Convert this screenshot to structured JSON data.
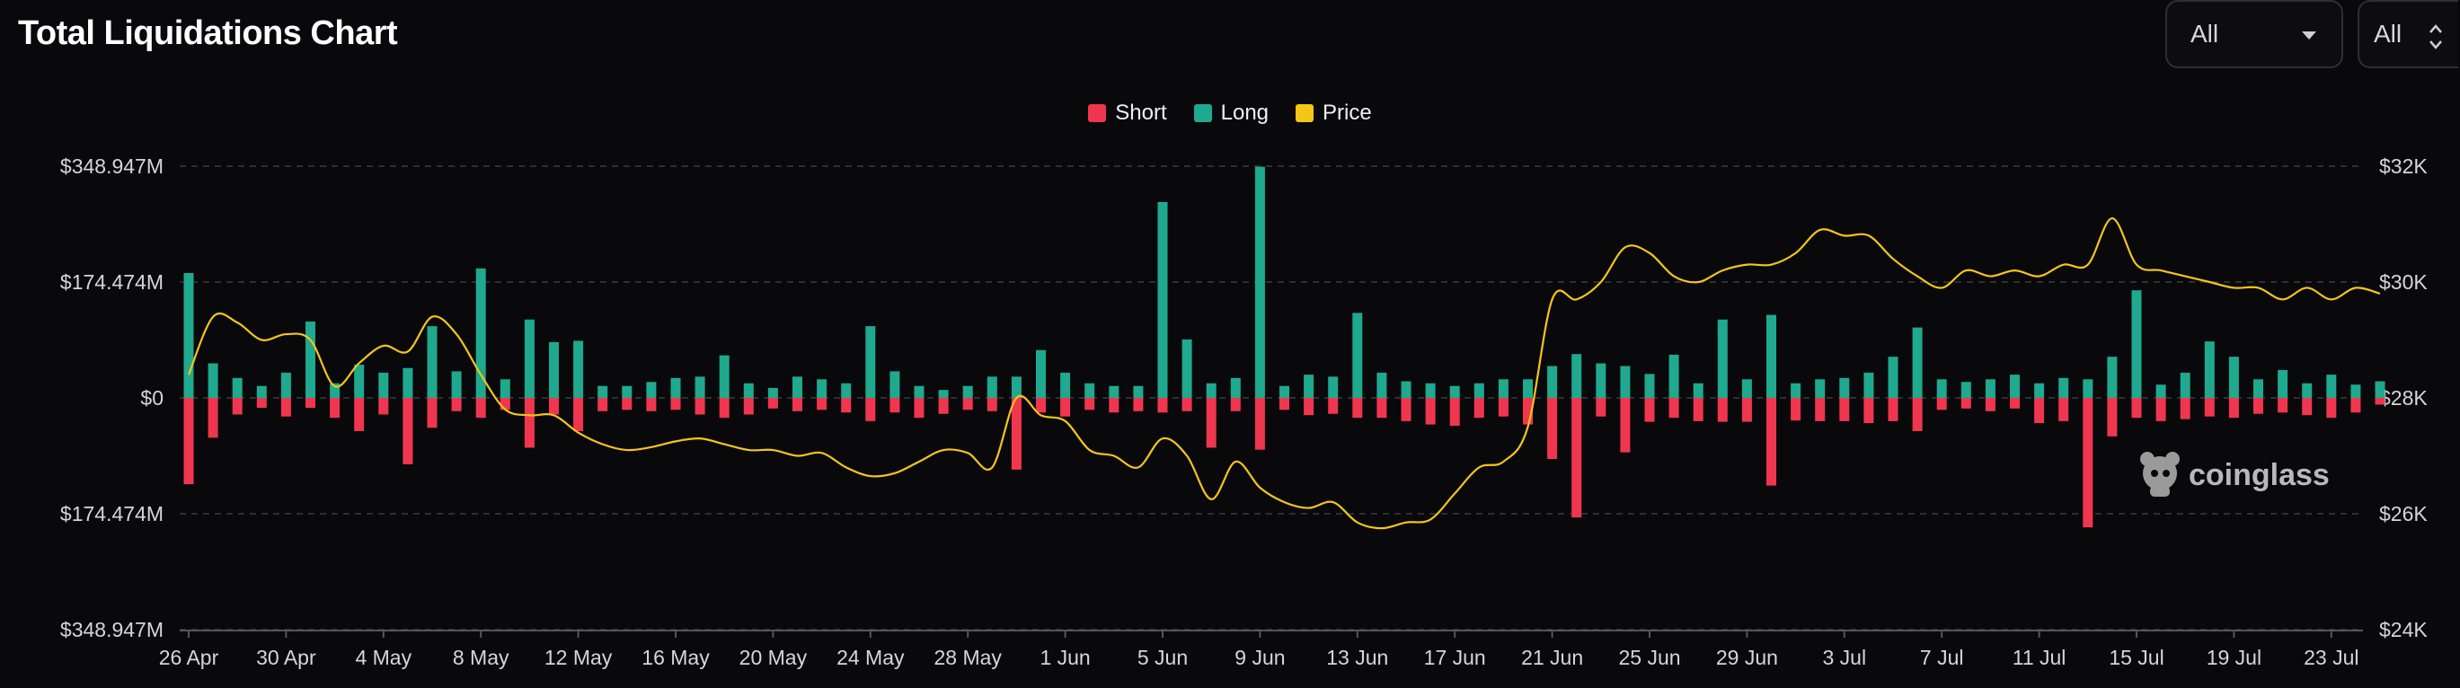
{
  "header": {
    "title": "Total Liquidations Chart"
  },
  "controls": {
    "select1": {
      "value": "All"
    },
    "select2": {
      "value": "All"
    }
  },
  "legend": [
    {
      "name": "Short",
      "color": "#f0364f"
    },
    {
      "name": "Long",
      "color": "#1fa98e"
    },
    {
      "name": "Price",
      "color": "#f5c518"
    }
  ],
  "watermark": "coinglass",
  "chart_data": {
    "type": "bar",
    "title": "Total Liquidations Chart",
    "grid": true,
    "legend_position": "top-center",
    "y_left": {
      "range": [
        -348.947,
        348.947
      ],
      "ticks": [
        "$348.947M",
        "$174.474M",
        "$0",
        "$174.474M",
        "$348.947M"
      ],
      "tick_values": [
        348.947,
        174.474,
        0,
        -174.474,
        -348.947
      ]
    },
    "y_right": {
      "range": [
        24000,
        32000
      ],
      "ticks": [
        "$32K",
        "$30K",
        "$28K",
        "$26K",
        "$24K"
      ],
      "tick_values": [
        32000,
        30000,
        28000,
        26000,
        24000
      ]
    },
    "x_tick_labels": [
      "26 Apr",
      "30 Apr",
      "4 May",
      "8 May",
      "12 May",
      "16 May",
      "20 May",
      "24 May",
      "28 May",
      "1 Jun",
      "5 Jun",
      "9 Jun",
      "13 Jun",
      "17 Jun",
      "21 Jun",
      "25 Jun",
      "29 Jun",
      "3 Jul",
      "7 Jul",
      "11 Jul",
      "15 Jul",
      "19 Jul",
      "23 Jul"
    ],
    "x_tick_index": [
      0,
      4,
      8,
      12,
      16,
      20,
      24,
      28,
      32,
      36,
      40,
      44,
      48,
      52,
      56,
      60,
      64,
      68,
      72,
      76,
      80,
      84,
      88
    ],
    "series": [
      {
        "name": "Long",
        "values": [
          188,
          52,
          30,
          18,
          38,
          115,
          22,
          50,
          38,
          45,
          108,
          40,
          195,
          28,
          118,
          84,
          86,
          18,
          18,
          24,
          30,
          32,
          64,
          22,
          15,
          32,
          28,
          22,
          108,
          40,
          18,
          12,
          18,
          32,
          32,
          72,
          38,
          22,
          18,
          18,
          295,
          88,
          22,
          30,
          348,
          18,
          35,
          32,
          128,
          38,
          25,
          22,
          18,
          22,
          28,
          28,
          48,
          66,
          52,
          48,
          36,
          65,
          22,
          118,
          28,
          125,
          22,
          28,
          30,
          38,
          62,
          106,
          28,
          24,
          28,
          35,
          22,
          30,
          28,
          62,
          162,
          20,
          38,
          85,
          62,
          28,
          42,
          22,
          35,
          20,
          25
        ]
      },
      {
        "name": "Short",
        "values": [
          -130,
          -60,
          -25,
          -15,
          -28,
          -15,
          -30,
          -50,
          -25,
          -100,
          -45,
          -20,
          -30,
          -18,
          -75,
          -25,
          -50,
          -20,
          -18,
          -20,
          -18,
          -25,
          -30,
          -25,
          -16,
          -20,
          -18,
          -22,
          -35,
          -22,
          -30,
          -24,
          -18,
          -20,
          -108,
          -22,
          -28,
          -18,
          -22,
          -20,
          -22,
          -20,
          -75,
          -20,
          -78,
          -18,
          -26,
          -24,
          -30,
          -30,
          -35,
          -40,
          -42,
          -30,
          -28,
          -40,
          -92,
          -180,
          -28,
          -82,
          -36,
          -30,
          -35,
          -36,
          -36,
          -132,
          -34,
          -35,
          -35,
          -38,
          -35,
          -50,
          -18,
          -16,
          -20,
          -16,
          -38,
          -35,
          -195,
          -58,
          -30,
          -35,
          -32,
          -28,
          -30,
          -24,
          -22,
          -26,
          -30,
          -22,
          -10
        ]
      },
      {
        "name": "Price",
        "values": [
          28400,
          29400,
          29300,
          29000,
          29100,
          29000,
          28200,
          28600,
          28900,
          28800,
          29400,
          29100,
          28400,
          27800,
          27700,
          27700,
          27400,
          27200,
          27100,
          27150,
          27250,
          27300,
          27200,
          27100,
          27100,
          27000,
          27050,
          26800,
          26650,
          26700,
          26900,
          27100,
          27050,
          26800,
          28000,
          27700,
          27600,
          27100,
          27000,
          26800,
          27300,
          27000,
          26250,
          26900,
          26450,
          26200,
          26100,
          26200,
          25850,
          25750,
          25850,
          25900,
          26350,
          26800,
          26900,
          27500,
          29700,
          29700,
          30000,
          30600,
          30500,
          30100,
          30000,
          30200,
          30300,
          30300,
          30500,
          30900,
          30800,
          30800,
          30400,
          30100,
          29900,
          30200,
          30100,
          30200,
          30100,
          30300,
          30300,
          31100,
          30300,
          30200,
          30100,
          30000,
          29900,
          29900,
          29700,
          29900,
          29700,
          29900,
          29800
        ]
      }
    ]
  }
}
